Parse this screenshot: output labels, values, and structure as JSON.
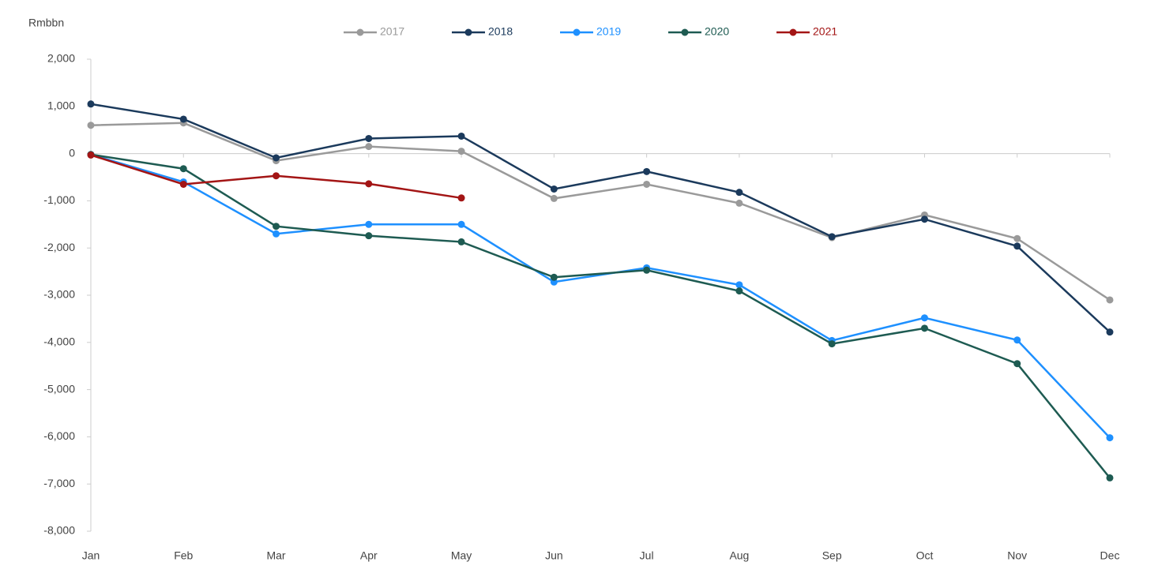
{
  "chart_data": {
    "type": "line",
    "y_label": "Rmbbn",
    "categories": [
      "Jan",
      "Feb",
      "Mar",
      "Apr",
      "May",
      "Jun",
      "Jul",
      "Aug",
      "Sep",
      "Oct",
      "Nov",
      "Dec"
    ],
    "series": [
      {
        "name": "2017",
        "color": "#9a9a9a",
        "values": [
          600,
          650,
          -150,
          150,
          50,
          -950,
          -650,
          -1050,
          -1780,
          -1300,
          -1800,
          -3100
        ]
      },
      {
        "name": "2018",
        "color": "#1b3a5c",
        "values": [
          1050,
          730,
          -90,
          320,
          370,
          -750,
          -380,
          -820,
          -1760,
          -1390,
          -1960,
          -3780
        ]
      },
      {
        "name": "2019",
        "color": "#1e90ff",
        "values": [
          -20,
          -600,
          -1700,
          -1500,
          -1500,
          -2720,
          -2420,
          -2780,
          -3960,
          -3480,
          -3950,
          -6020
        ]
      },
      {
        "name": "2020",
        "color": "#1e5b52",
        "values": [
          -20,
          -320,
          -1540,
          -1740,
          -1870,
          -2620,
          -2470,
          -2910,
          -4030,
          -3700,
          -4450,
          -6870
        ]
      },
      {
        "name": "2021",
        "color": "#a31515",
        "values": [
          -30,
          -650,
          -470,
          -640,
          -940,
          null,
          null,
          null,
          null,
          null,
          null,
          null
        ]
      }
    ],
    "ylim": [
      -8000,
      2000
    ],
    "yticks": [
      {
        "value": 2000,
        "label": "2,000"
      },
      {
        "value": 1000,
        "label": "1,000"
      },
      0,
      {
        "value": -1000,
        "label": "-1,000"
      },
      {
        "value": -2000,
        "label": "-2,000"
      },
      {
        "value": -3000,
        "label": "-3,000"
      },
      {
        "value": -4000,
        "label": "-4,000"
      },
      {
        "value": -5000,
        "label": "-5,000"
      },
      {
        "value": -6000,
        "label": "-6,000"
      },
      {
        "value": -7000,
        "label": "-7,000"
      },
      {
        "value": -8000,
        "label": "-8,000"
      }
    ],
    "legend": "top",
    "grid": false
  }
}
